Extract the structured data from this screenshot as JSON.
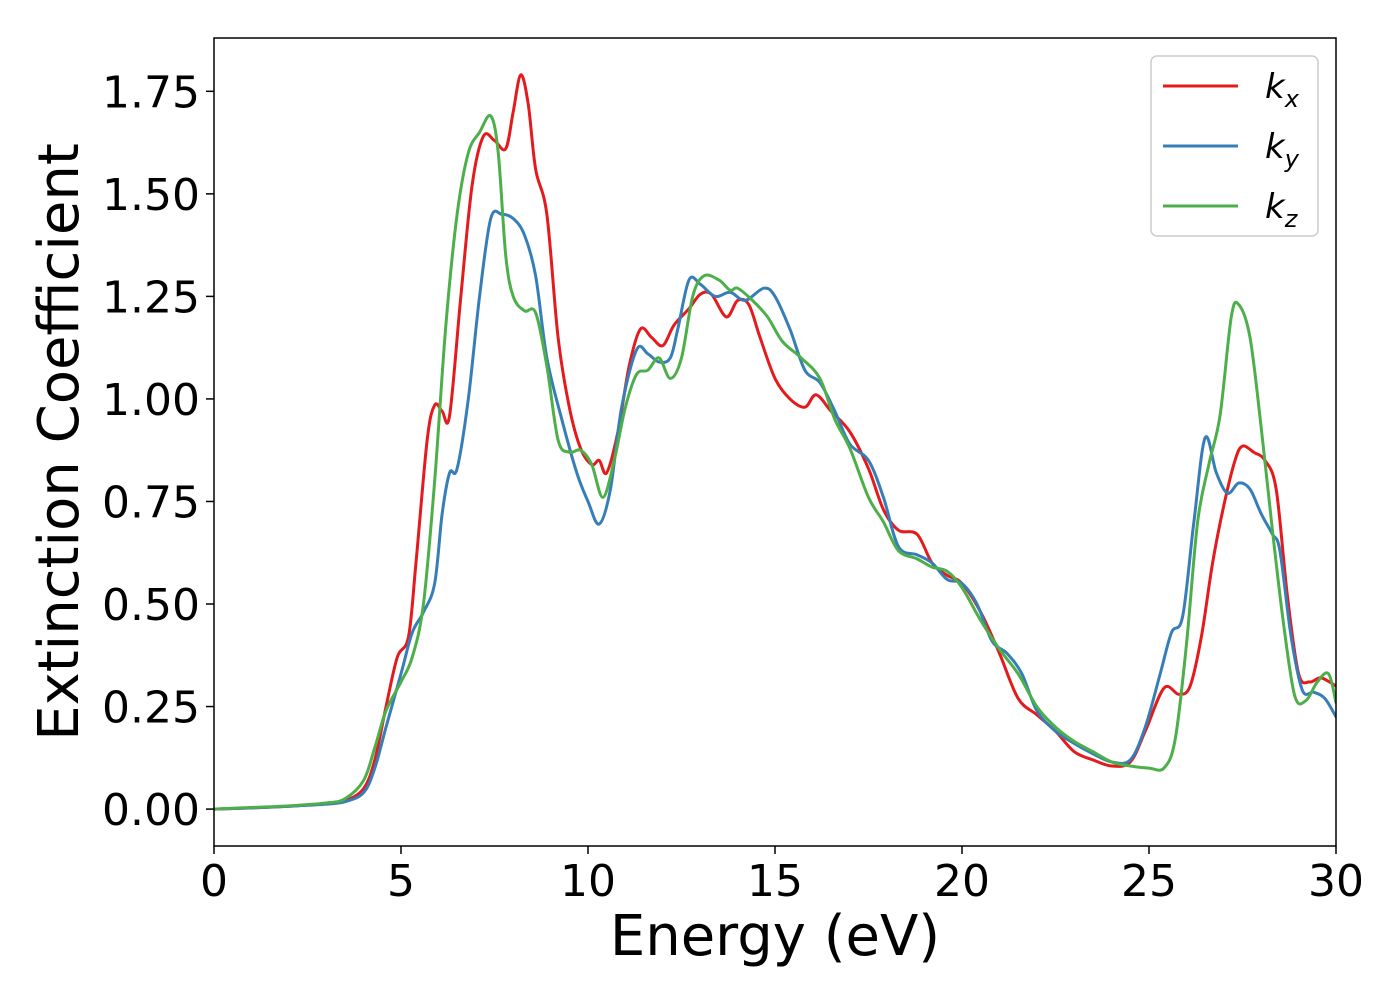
{
  "chart_data": {
    "type": "line",
    "title": "",
    "xlabel": "Energy (eV)",
    "ylabel": "Extinction Coefficient",
    "xlim": [
      0,
      30
    ],
    "ylim": [
      -0.09,
      1.88
    ],
    "xticks": [
      0,
      5,
      10,
      15,
      20,
      25,
      30
    ],
    "xtick_labels": [
      "0",
      "5",
      "10",
      "15",
      "20",
      "25",
      "30"
    ],
    "yticks": [
      0.0,
      0.25,
      0.5,
      0.75,
      1.0,
      1.25,
      1.5,
      1.75
    ],
    "ytick_labels": [
      "0.00",
      "0.25",
      "0.50",
      "0.75",
      "1.00",
      "1.25",
      "1.50",
      "1.75"
    ],
    "grid": false,
    "legend": {
      "position": "top-right",
      "entries": [
        {
          "base": "k",
          "sub": "x",
          "color": "#e41a1c"
        },
        {
          "base": "k",
          "sub": "y",
          "color": "#377eb8"
        },
        {
          "base": "k",
          "sub": "z",
          "color": "#4daf4a"
        }
      ]
    },
    "series": [
      {
        "color": "#e41a1c",
        "points": [
          [
            0,
            0
          ],
          [
            1,
            0.003
          ],
          [
            2,
            0.007
          ],
          [
            3,
            0.013
          ],
          [
            3.5,
            0.02
          ],
          [
            4,
            0.05
          ],
          [
            4.3,
            0.12
          ],
          [
            4.6,
            0.25
          ],
          [
            4.9,
            0.37
          ],
          [
            5.2,
            0.42
          ],
          [
            5.4,
            0.6
          ],
          [
            5.7,
            0.9
          ],
          [
            5.9,
            0.985
          ],
          [
            6.1,
            0.97
          ],
          [
            6.3,
            0.96
          ],
          [
            6.6,
            1.25
          ],
          [
            6.9,
            1.52
          ],
          [
            7.2,
            1.64
          ],
          [
            7.5,
            1.63
          ],
          [
            7.8,
            1.61
          ],
          [
            8.0,
            1.7
          ],
          [
            8.2,
            1.79
          ],
          [
            8.4,
            1.72
          ],
          [
            8.6,
            1.56
          ],
          [
            8.9,
            1.45
          ],
          [
            9.2,
            1.15
          ],
          [
            9.5,
            0.98
          ],
          [
            9.8,
            0.88
          ],
          [
            10.1,
            0.84
          ],
          [
            10.3,
            0.85
          ],
          [
            10.5,
            0.82
          ],
          [
            10.8,
            0.92
          ],
          [
            11.1,
            1.08
          ],
          [
            11.4,
            1.17
          ],
          [
            11.7,
            1.15
          ],
          [
            12.0,
            1.13
          ],
          [
            12.3,
            1.18
          ],
          [
            12.7,
            1.22
          ],
          [
            13.0,
            1.255
          ],
          [
            13.3,
            1.255
          ],
          [
            13.7,
            1.2
          ],
          [
            14.0,
            1.24
          ],
          [
            14.3,
            1.23
          ],
          [
            14.6,
            1.15
          ],
          [
            15.0,
            1.05
          ],
          [
            15.4,
            1.0
          ],
          [
            15.8,
            0.98
          ],
          [
            16.1,
            1.01
          ],
          [
            16.5,
            0.97
          ],
          [
            17.0,
            0.92
          ],
          [
            17.5,
            0.83
          ],
          [
            17.9,
            0.73
          ],
          [
            18.3,
            0.68
          ],
          [
            18.8,
            0.67
          ],
          [
            19.2,
            0.6
          ],
          [
            19.6,
            0.57
          ],
          [
            20.0,
            0.55
          ],
          [
            20.5,
            0.48
          ],
          [
            21.0,
            0.38
          ],
          [
            21.5,
            0.27
          ],
          [
            22.0,
            0.23
          ],
          [
            22.5,
            0.19
          ],
          [
            23.0,
            0.14
          ],
          [
            23.5,
            0.12
          ],
          [
            24.0,
            0.105
          ],
          [
            24.5,
            0.115
          ],
          [
            24.9,
            0.19
          ],
          [
            25.4,
            0.295
          ],
          [
            25.8,
            0.28
          ],
          [
            26.1,
            0.3
          ],
          [
            26.4,
            0.42
          ],
          [
            26.7,
            0.6
          ],
          [
            27.0,
            0.74
          ],
          [
            27.3,
            0.85
          ],
          [
            27.5,
            0.885
          ],
          [
            27.8,
            0.87
          ],
          [
            28.1,
            0.85
          ],
          [
            28.4,
            0.78
          ],
          [
            28.7,
            0.52
          ],
          [
            29.0,
            0.33
          ],
          [
            29.3,
            0.31
          ],
          [
            29.6,
            0.32
          ],
          [
            30,
            0.3
          ]
        ]
      },
      {
        "color": "#377eb8",
        "points": [
          [
            0,
            0
          ],
          [
            1,
            0.003
          ],
          [
            2,
            0.007
          ],
          [
            3,
            0.012
          ],
          [
            3.5,
            0.018
          ],
          [
            4,
            0.04
          ],
          [
            4.3,
            0.1
          ],
          [
            4.6,
            0.2
          ],
          [
            5.0,
            0.33
          ],
          [
            5.3,
            0.43
          ],
          [
            5.6,
            0.48
          ],
          [
            5.9,
            0.55
          ],
          [
            6.1,
            0.72
          ],
          [
            6.3,
            0.82
          ],
          [
            6.5,
            0.83
          ],
          [
            6.8,
            1.0
          ],
          [
            7.1,
            1.25
          ],
          [
            7.4,
            1.44
          ],
          [
            7.7,
            1.45
          ],
          [
            8.0,
            1.44
          ],
          [
            8.3,
            1.4
          ],
          [
            8.6,
            1.3
          ],
          [
            8.9,
            1.1
          ],
          [
            9.3,
            0.95
          ],
          [
            9.7,
            0.82
          ],
          [
            10.0,
            0.75
          ],
          [
            10.3,
            0.695
          ],
          [
            10.6,
            0.78
          ],
          [
            10.9,
            0.98
          ],
          [
            11.3,
            1.12
          ],
          [
            11.6,
            1.11
          ],
          [
            11.9,
            1.09
          ],
          [
            12.2,
            1.1
          ],
          [
            12.4,
            1.17
          ],
          [
            12.7,
            1.29
          ],
          [
            13.0,
            1.28
          ],
          [
            13.4,
            1.25
          ],
          [
            13.8,
            1.26
          ],
          [
            14.2,
            1.24
          ],
          [
            14.7,
            1.27
          ],
          [
            15.0,
            1.25
          ],
          [
            15.4,
            1.17
          ],
          [
            15.8,
            1.07
          ],
          [
            16.2,
            1.04
          ],
          [
            16.6,
            0.97
          ],
          [
            17.0,
            0.89
          ],
          [
            17.5,
            0.85
          ],
          [
            17.9,
            0.76
          ],
          [
            18.3,
            0.64
          ],
          [
            18.8,
            0.62
          ],
          [
            19.2,
            0.6
          ],
          [
            19.6,
            0.56
          ],
          [
            20.0,
            0.55
          ],
          [
            20.4,
            0.5
          ],
          [
            20.8,
            0.41
          ],
          [
            21.2,
            0.38
          ],
          [
            21.6,
            0.33
          ],
          [
            22.0,
            0.24
          ],
          [
            22.5,
            0.19
          ],
          [
            23.0,
            0.16
          ],
          [
            23.5,
            0.135
          ],
          [
            24.0,
            0.115
          ],
          [
            24.5,
            0.12
          ],
          [
            24.9,
            0.2
          ],
          [
            25.3,
            0.33
          ],
          [
            25.6,
            0.43
          ],
          [
            25.9,
            0.47
          ],
          [
            26.2,
            0.7
          ],
          [
            26.5,
            0.905
          ],
          [
            26.8,
            0.82
          ],
          [
            27.1,
            0.77
          ],
          [
            27.4,
            0.795
          ],
          [
            27.7,
            0.78
          ],
          [
            28.0,
            0.72
          ],
          [
            28.3,
            0.67
          ],
          [
            28.5,
            0.63
          ],
          [
            28.8,
            0.42
          ],
          [
            29.1,
            0.29
          ],
          [
            29.4,
            0.285
          ],
          [
            29.7,
            0.27
          ],
          [
            30,
            0.225
          ]
        ]
      },
      {
        "color": "#4daf4a",
        "points": [
          [
            0,
            0
          ],
          [
            1,
            0.004
          ],
          [
            2,
            0.008
          ],
          [
            3,
            0.015
          ],
          [
            3.5,
            0.025
          ],
          [
            4,
            0.07
          ],
          [
            4.3,
            0.15
          ],
          [
            4.6,
            0.24
          ],
          [
            5.0,
            0.31
          ],
          [
            5.3,
            0.37
          ],
          [
            5.6,
            0.5
          ],
          [
            5.9,
            0.8
          ],
          [
            6.2,
            1.18
          ],
          [
            6.5,
            1.45
          ],
          [
            6.8,
            1.6
          ],
          [
            7.1,
            1.65
          ],
          [
            7.4,
            1.69
          ],
          [
            7.6,
            1.6
          ],
          [
            7.8,
            1.35
          ],
          [
            8.0,
            1.25
          ],
          [
            8.3,
            1.215
          ],
          [
            8.6,
            1.21
          ],
          [
            8.9,
            1.08
          ],
          [
            9.2,
            0.9
          ],
          [
            9.5,
            0.87
          ],
          [
            9.8,
            0.875
          ],
          [
            10.1,
            0.84
          ],
          [
            10.4,
            0.76
          ],
          [
            10.7,
            0.85
          ],
          [
            11.0,
            0.98
          ],
          [
            11.3,
            1.06
          ],
          [
            11.6,
            1.07
          ],
          [
            11.9,
            1.1
          ],
          [
            12.2,
            1.05
          ],
          [
            12.5,
            1.1
          ],
          [
            12.8,
            1.25
          ],
          [
            13.1,
            1.3
          ],
          [
            13.5,
            1.29
          ],
          [
            13.8,
            1.265
          ],
          [
            14.0,
            1.27
          ],
          [
            14.4,
            1.24
          ],
          [
            14.8,
            1.2
          ],
          [
            15.2,
            1.14
          ],
          [
            15.7,
            1.1
          ],
          [
            16.2,
            1.05
          ],
          [
            16.6,
            0.95
          ],
          [
            17.0,
            0.88
          ],
          [
            17.5,
            0.76
          ],
          [
            17.9,
            0.7
          ],
          [
            18.3,
            0.63
          ],
          [
            18.8,
            0.61
          ],
          [
            19.2,
            0.59
          ],
          [
            19.6,
            0.58
          ],
          [
            20.0,
            0.54
          ],
          [
            20.5,
            0.46
          ],
          [
            21.0,
            0.39
          ],
          [
            21.5,
            0.33
          ],
          [
            22.0,
            0.25
          ],
          [
            22.5,
            0.2
          ],
          [
            23.0,
            0.165
          ],
          [
            23.5,
            0.14
          ],
          [
            24.0,
            0.115
          ],
          [
            24.5,
            0.105
          ],
          [
            25.0,
            0.1
          ],
          [
            25.4,
            0.1
          ],
          [
            25.7,
            0.17
          ],
          [
            26.0,
            0.4
          ],
          [
            26.3,
            0.7
          ],
          [
            26.6,
            0.84
          ],
          [
            26.9,
            0.96
          ],
          [
            27.2,
            1.2
          ],
          [
            27.4,
            1.23
          ],
          [
            27.7,
            1.15
          ],
          [
            28.0,
            0.93
          ],
          [
            28.3,
            0.68
          ],
          [
            28.6,
            0.45
          ],
          [
            28.9,
            0.275
          ],
          [
            29.2,
            0.265
          ],
          [
            29.5,
            0.31
          ],
          [
            29.8,
            0.33
          ],
          [
            30,
            0.26
          ]
        ]
      }
    ]
  }
}
